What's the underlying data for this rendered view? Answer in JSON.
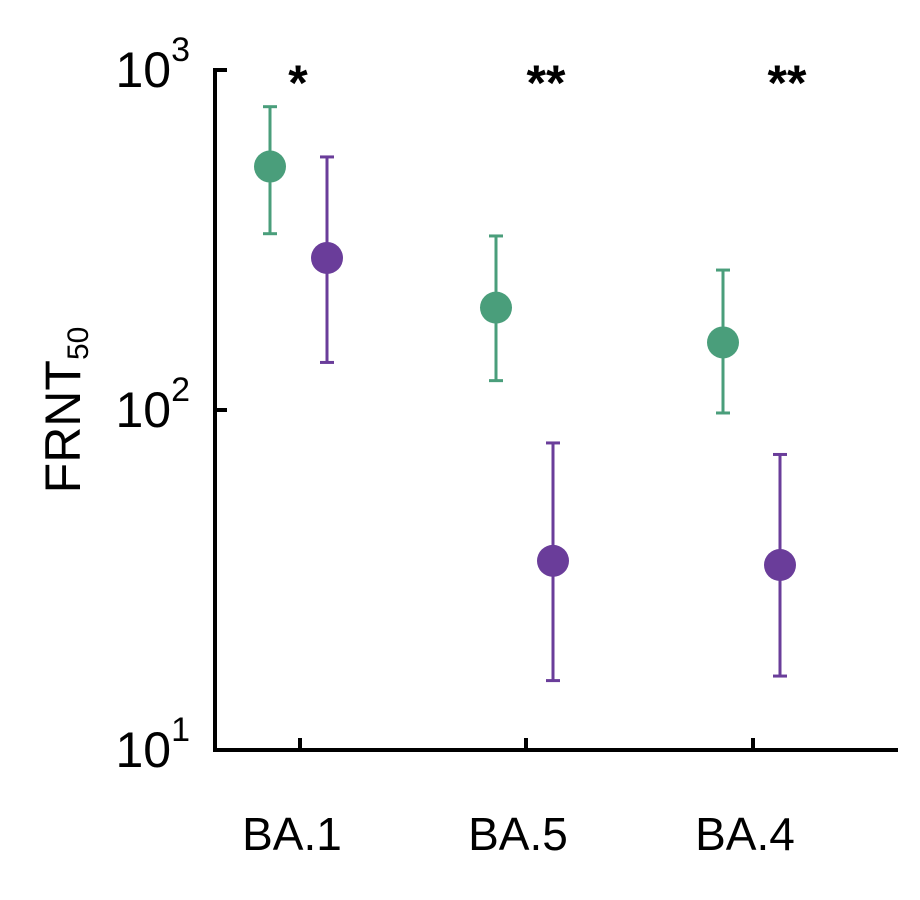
{
  "chart_data": {
    "type": "scatter",
    "y_scale": "log",
    "ylim": [
      10,
      1000
    ],
    "ylabel": {
      "main": "FRNT",
      "sub": "50"
    },
    "yticks": [
      {
        "value": 10,
        "base": "10",
        "exp": "1"
      },
      {
        "value": 100,
        "base": "10",
        "exp": "2"
      },
      {
        "value": 1000,
        "base": "10",
        "exp": "3"
      }
    ],
    "categories": [
      "BA.1",
      "BA.5",
      "BA.4"
    ],
    "significance": [
      "*",
      "**",
      "**"
    ],
    "series": [
      {
        "color": "#4a9e7b",
        "values": [
          520,
          200,
          158
        ],
        "err_low": [
          330,
          122,
          98
        ],
        "err_high": [
          780,
          325,
          258
        ]
      },
      {
        "color": "#6a3d9a",
        "values": [
          280,
          36,
          35
        ],
        "err_low": [
          138,
          16,
          16.5
        ],
        "err_high": [
          555,
          80,
          74
        ]
      }
    ],
    "grid": false,
    "legend": "none"
  }
}
